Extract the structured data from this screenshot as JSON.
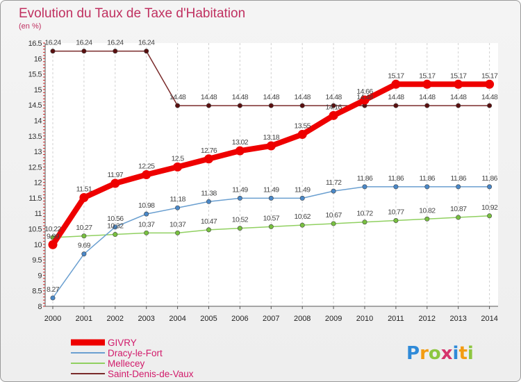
{
  "title": "Evolution du Taux de Taxe d'Habitation",
  "subtitle": "(en %)",
  "logo": {
    "text": "Proxiti",
    "letters": [
      {
        "ch": "P",
        "color": "#2f8ad8"
      },
      {
        "ch": "r",
        "color": "#f39c12"
      },
      {
        "ch": "o",
        "color": "#8dc63f"
      },
      {
        "ch": "x",
        "color": "#d6336c"
      },
      {
        "ch": "i",
        "color": "#2f8ad8"
      },
      {
        "ch": "t",
        "color": "#f39c12"
      },
      {
        "ch": "i",
        "color": "#8dc63f"
      }
    ]
  },
  "chart_data": {
    "type": "line",
    "title": "Evolution du Taux de Taxe d'Habitation",
    "subtitle": "(en %)",
    "xlabel": "",
    "ylabel": "",
    "x": [
      2000,
      2001,
      2002,
      2003,
      2004,
      2005,
      2006,
      2007,
      2008,
      2009,
      2010,
      2011,
      2012,
      2013,
      2014
    ],
    "ylim": [
      8,
      16.5
    ],
    "yticks": [
      8,
      8.5,
      9,
      9.5,
      10,
      10.5,
      11,
      11.5,
      12,
      12.5,
      13,
      13.5,
      14,
      14.5,
      15,
      15.5,
      16,
      16.5
    ],
    "ytick_labels": [
      "8",
      "8.5",
      "9",
      "9.5",
      "10",
      "10.5",
      "11",
      "11.5",
      "12",
      "12.5",
      "13",
      "13.5",
      "14",
      "14.5",
      "15",
      "15.5",
      "16",
      "16.5"
    ],
    "legend_position": "bottom-left",
    "series": [
      {
        "name": "Saint-Denis-de-Vaux",
        "color": "#7a2a2a",
        "marker_color": "#5a1010",
        "values": [
          16.24,
          16.24,
          16.24,
          16.24,
          14.48,
          14.48,
          14.48,
          14.48,
          14.48,
          14.48,
          14.48,
          14.48,
          14.48,
          14.48,
          14.48
        ]
      },
      {
        "name": "Mellecey",
        "color": "#90d060",
        "marker_color": "#78c040",
        "values": [
          10.22,
          10.27,
          10.32,
          10.37,
          10.37,
          10.47,
          10.52,
          10.57,
          10.62,
          10.67,
          10.72,
          10.77,
          10.82,
          10.87,
          10.92
        ]
      },
      {
        "name": "Dracy-le-Fort",
        "color": "#6a9fd0",
        "marker_color": "#4a88c8",
        "values": [
          8.27,
          9.69,
          10.56,
          10.98,
          11.18,
          11.38,
          11.49,
          11.49,
          11.49,
          11.72,
          11.86,
          11.86,
          11.86,
          11.86,
          11.86
        ]
      },
      {
        "name": "GIVRY",
        "color": "#ee0000",
        "marker_color": "#ee0000",
        "values": [
          9.99,
          11.51,
          11.97,
          12.25,
          12.5,
          12.76,
          13.02,
          13.18,
          13.55,
          14.16,
          14.66,
          15.17,
          15.17,
          15.17,
          15.17
        ]
      }
    ],
    "labels": {
      "Saint-Denis-de-Vaux": [
        "16.24",
        "16.24",
        "16.24",
        "16.24",
        "14.48",
        "14.48",
        "14.48",
        "14.48",
        "14.48",
        "14.48",
        "14.48",
        "14.48",
        "14.48",
        "14.48",
        "14.48"
      ],
      "Mellecey": [
        "10.22",
        "10.27",
        "10.32",
        "10.37",
        "10.37",
        "10.47",
        "10.52",
        "10.57",
        "10.62",
        "10.67",
        "10.72",
        "10.77",
        "10.82",
        "10.87",
        "10.92"
      ],
      "Dracy-le-Fort": [
        "8.27",
        "9.69",
        "10.56",
        "10.98",
        "11.18",
        "11.38",
        "11.49",
        "11.49",
        "11.49",
        "11.72",
        "11.86",
        "11.86",
        "11.86",
        "11.86",
        "11.86"
      ],
      "GIVRY": [
        "9.99",
        "11.51",
        "11.97",
        "12.25",
        "12.5",
        "12.76",
        "13.02",
        "13.18",
        "13.55",
        "14.16",
        "14.66",
        "15.17",
        "15.17",
        "15.17",
        "15.17"
      ]
    },
    "legend": [
      {
        "name": "GIVRY",
        "color": "#ee0000"
      },
      {
        "name": "Dracy-le-Fort",
        "color": "#6a9fd0"
      },
      {
        "name": "Mellecey",
        "color": "#90d060"
      },
      {
        "name": "Saint-Denis-de-Vaux",
        "color": "#7a2a2a"
      }
    ]
  }
}
